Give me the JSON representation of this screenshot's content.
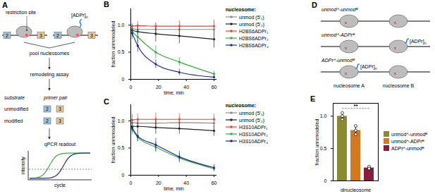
{
  "chart_data": [
    {
      "type": "line",
      "panel": "B",
      "legend_title": "nucleosome:",
      "legend": "right",
      "xlabel": "time, min",
      "ylabel": "fraction unremodeled",
      "x": [
        1,
        5,
        18,
        35,
        60
      ],
      "xlim": [
        0,
        62
      ],
      "xticks": [
        0,
        20,
        40,
        60
      ],
      "ylim": [
        0,
        1.3
      ],
      "yticks": [
        0,
        0.5,
        {
          "value": 1,
          "label": "1.0"
        }
      ],
      "series": [
        {
          "name": "unmod (5'₁)",
          "color": "#8c8c8c",
          "marker": "circle",
          "values": [
            0.93,
            0.92,
            0.92,
            0.92,
            0.92
          ],
          "errors": [
            0.08,
            0.1,
            0.12,
            0.1,
            0.15
          ]
        },
        {
          "name": "unmod (5'₂)",
          "color": "#222222",
          "marker": "circle",
          "values": [
            0.9,
            0.88,
            0.84,
            0.8,
            0.74
          ],
          "errors": [
            0.1,
            0.12,
            0.15,
            0.14,
            0.16
          ]
        },
        {
          "name": "H2BS6ADPr₁",
          "color": "#e8433a",
          "marker": "circle",
          "values": [
            0.98,
            0.99,
            0.98,
            0.98,
            0.98
          ],
          "errors": [
            0.05,
            0.08,
            0.06,
            0.1,
            0.12
          ]
        },
        {
          "name": "H2BS6ADPr₂",
          "color": "#3aa845",
          "marker": "circle",
          "values": [
            0.88,
            0.78,
            0.5,
            0.32,
            0.1
          ],
          "errors": [
            0.08,
            0.1,
            0.12,
            0.08,
            0.05
          ]
        },
        {
          "name": "H2BS6ADPr₄",
          "color": "#1c2f8c",
          "marker": "circle",
          "values": [
            0.85,
            0.62,
            0.28,
            0.13,
            0.04
          ],
          "errors": [
            0.1,
            0.12,
            0.08,
            0.06,
            0.03
          ]
        }
      ]
    },
    {
      "type": "line",
      "panel": "C",
      "legend_title": "nucleosome:",
      "legend": "right",
      "xlabel": "time, min",
      "ylabel": "fraction unremodeled",
      "x": [
        1,
        5,
        18,
        35,
        60
      ],
      "xlim": [
        0,
        62
      ],
      "xticks": [
        0,
        20,
        40,
        60
      ],
      "ylim": [
        0,
        1.3
      ],
      "yticks": [
        0,
        0.5,
        {
          "value": 1,
          "label": "1.0"
        }
      ],
      "series": [
        {
          "name": "unmod (5'₁)",
          "color": "#8c8c8c",
          "marker": "circle",
          "values": [
            0.97,
            0.96,
            0.96,
            0.97,
            0.96
          ],
          "errors": [
            0.06,
            0.08,
            0.1,
            0.1,
            0.12
          ]
        },
        {
          "name": "unmod (5'₂)",
          "color": "#222222",
          "marker": "circle",
          "values": [
            0.9,
            0.9,
            0.88,
            0.86,
            0.82
          ],
          "errors": [
            0.08,
            0.1,
            0.12,
            0.1,
            0.1
          ]
        },
        {
          "name": "H3S10ADPr₁",
          "color": "#e8433a",
          "marker": "circle",
          "values": [
            1.02,
            1.03,
            1.03,
            1.03,
            1.03
          ],
          "errors": [
            0.1,
            0.1,
            0.12,
            0.1,
            0.1
          ]
        },
        {
          "name": "H3S10ADPr₂",
          "color": "#3aa845",
          "marker": "circle",
          "values": [
            0.85,
            0.7,
            0.52,
            0.32,
            0.12
          ],
          "errors": [
            0.1,
            0.08,
            0.1,
            0.08,
            0.06
          ]
        },
        {
          "name": "H3S10ADPr₄",
          "color": "#1c2f8c",
          "marker": "circle",
          "values": [
            0.88,
            0.72,
            0.56,
            0.34,
            0.14
          ],
          "errors": [
            0.08,
            0.1,
            0.12,
            0.1,
            0.06
          ]
        }
      ]
    },
    {
      "type": "bar",
      "panel": "E",
      "legend": "right",
      "xlabel": "dinucleosome",
      "ylabel": "fraction unremodeled",
      "categories": [
        null,
        null,
        null
      ],
      "ylim": [
        0,
        1.2
      ],
      "yticks": [
        0,
        0.5,
        {
          "value": 1,
          "label": "1.0"
        }
      ],
      "annotation": "**",
      "series": [
        {
          "name": "unmodᴬ-unmodᴮ",
          "color": "#8b8b2e",
          "values": [
            1.0,
            null,
            null
          ],
          "errors": [
            0.05,
            null,
            null
          ],
          "replicates": [
            [
              1.05,
              0.95,
              1.0
            ],
            null,
            null
          ]
        },
        {
          "name": "unmodᴬ-ADPrᴮ",
          "color": "#d2781e",
          "values": [
            null,
            0.78,
            null
          ],
          "errors": [
            null,
            0.06,
            null
          ],
          "replicates": [
            null,
            [
              0.85,
              0.72,
              0.78
            ],
            null
          ]
        },
        {
          "name": "ADPrᴬ-unmodᴮ",
          "color": "#8e1b3c",
          "values": [
            null,
            null,
            0.2
          ],
          "errors": [
            null,
            null,
            0.02
          ],
          "replicates": [
            null,
            null,
            [
              0.2,
              0.22,
              0.19
            ]
          ]
        }
      ]
    }
  ],
  "diagrams": {
    "A": {
      "letter": "A",
      "restriction_site": "restriction site",
      "modification": "[ADPr]",
      "modification_sub": "n",
      "barcodes": [
        "2",
        "3"
      ],
      "steps": [
        "pool nucleosomes",
        "remodeling assay"
      ],
      "table_heads": [
        "substrate",
        "primer pair"
      ],
      "rows": [
        "unmodified",
        "modified"
      ],
      "readout_title": "qPCR readout",
      "readout_xlabel": "cycle",
      "readout_ylabel": "intensity"
    },
    "D": {
      "letter": "D",
      "modification": "[ADPr]",
      "modification_sub": "n",
      "rows": [
        {
          "label": "unmodᴬ-unmodᴮ",
          "modified": [
            false,
            false
          ]
        },
        {
          "label": "unmodᴬ-ADPrᴮ",
          "modified": [
            false,
            true
          ]
        },
        {
          "label": "ADPrᴬ-unmodᴮ",
          "modified": [
            true,
            false
          ]
        }
      ],
      "nucleosome_labels": [
        "nucleosome A",
        "nucleosome B"
      ]
    }
  }
}
